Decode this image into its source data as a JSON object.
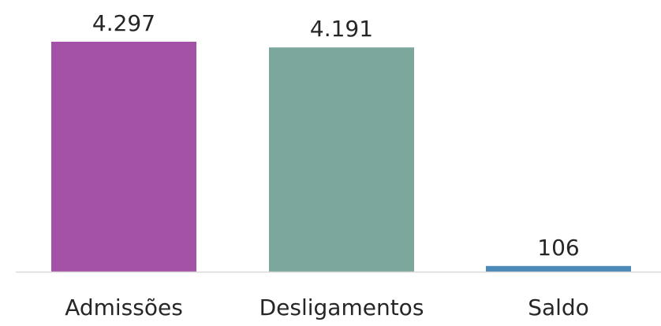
{
  "chart_data": {
    "type": "bar",
    "categories": [
      "Admissões",
      "Desligamentos",
      "Saldo"
    ],
    "values": [
      4297,
      4191,
      106
    ],
    "value_labels": [
      "4.297",
      "4.191",
      "106"
    ],
    "colors": [
      "#A452A8",
      "#7BA79D",
      "#4A89B8"
    ],
    "title": "",
    "xlabel": "",
    "ylabel": "",
    "ylim": [
      0,
      4297
    ],
    "grid": false,
    "legend": "none",
    "axis_color": "#D9D9D9"
  }
}
